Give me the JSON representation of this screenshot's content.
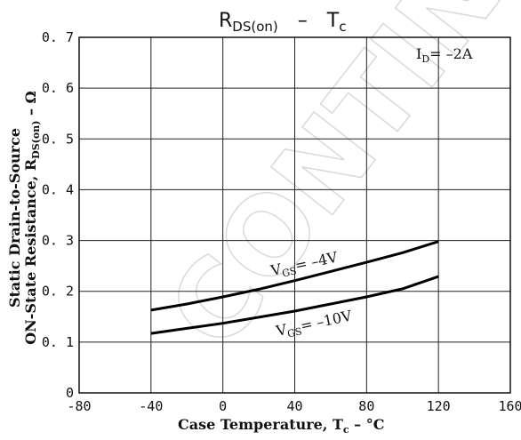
{
  "title": {
    "main": "R",
    "sub": "DS(on)",
    "dash": "–",
    "rhs_main": "T",
    "rhs_sub": "c"
  },
  "watermark": "CONTINUE",
  "chart_data": {
    "type": "line",
    "xlabel": "Case Temperature, Tc – °C",
    "ylabel": "Static Drain-to-Source ON-State Resistance, RDS(on) – Ω",
    "xlim": [
      -80,
      160
    ],
    "ylim": [
      0,
      0.7
    ],
    "x_ticks": [
      -80,
      -40,
      0,
      40,
      80,
      120,
      160
    ],
    "y_ticks": [
      0,
      0.1,
      0.2,
      0.3,
      0.4,
      0.5,
      0.6,
      0.7
    ],
    "x_tick_labels": [
      "-80",
      "-40",
      "0",
      "40",
      "80",
      "120",
      "160"
    ],
    "y_tick_labels": [
      "0",
      "0. 1",
      "0. 2",
      "0. 3",
      "0. 4",
      "0. 5",
      "0. 6",
      "0. 7"
    ],
    "grid": true,
    "condition": {
      "main": "I",
      "sub": "D",
      "rest": "= –2A"
    },
    "series": [
      {
        "name": "VGS= –4V",
        "label_main": "V",
        "label_sub": "GS",
        "label_rest": "= –4V",
        "x": [
          -40,
          -20,
          0,
          20,
          40,
          60,
          80,
          100,
          120
        ],
        "y": [
          0.163,
          0.175,
          0.189,
          0.204,
          0.221,
          0.239,
          0.257,
          0.276,
          0.298
        ]
      },
      {
        "name": "VGS= –10V",
        "label_main": "V",
        "label_sub": "GS",
        "label_rest": "= –10V",
        "x": [
          -40,
          -20,
          0,
          20,
          40,
          60,
          80,
          100,
          120
        ],
        "y": [
          0.117,
          0.127,
          0.137,
          0.149,
          0.161,
          0.175,
          0.189,
          0.205,
          0.229
        ]
      }
    ]
  }
}
